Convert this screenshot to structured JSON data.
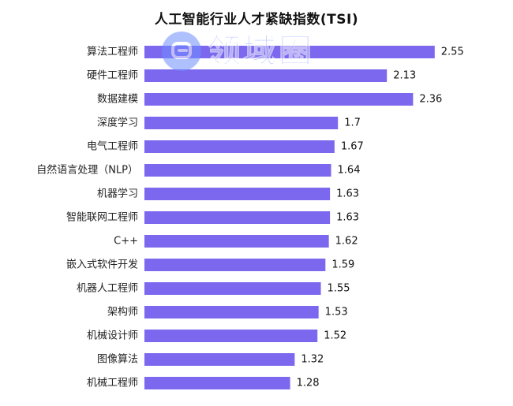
{
  "chart_data": {
    "type": "bar",
    "orientation": "horizontal",
    "title": "人工智能行业人才紧缺指数(TSI)",
    "categories": [
      "算法工程师",
      "硬件工程师",
      "数据建模",
      "深度学习",
      "电气工程师",
      "自然语言处理（NLP）",
      "机器学习",
      "智能联网工程师",
      "C++",
      "嵌入式软件开发",
      "机器人工程师",
      "架构师",
      "机械设计师",
      "图像算法",
      "机械工程师"
    ],
    "values": [
      2.55,
      2.13,
      2.36,
      1.7,
      1.67,
      1.64,
      1.63,
      1.63,
      1.62,
      1.59,
      1.55,
      1.53,
      1.52,
      1.32,
      1.28
    ],
    "value_labels": [
      "2.55",
      "2.13",
      "2.36",
      "1.7",
      "1.67",
      "1.64",
      "1.63",
      "1.63",
      "1.62",
      "1.59",
      "1.55",
      "1.53",
      "1.52",
      "1.32",
      "1.28"
    ],
    "xlabel": "",
    "ylabel": "",
    "xlim": [
      0,
      2.6
    ],
    "grid": false,
    "legend": "none",
    "bar_color": "#7b68ee"
  },
  "watermark": {
    "text": "领域圈"
  }
}
